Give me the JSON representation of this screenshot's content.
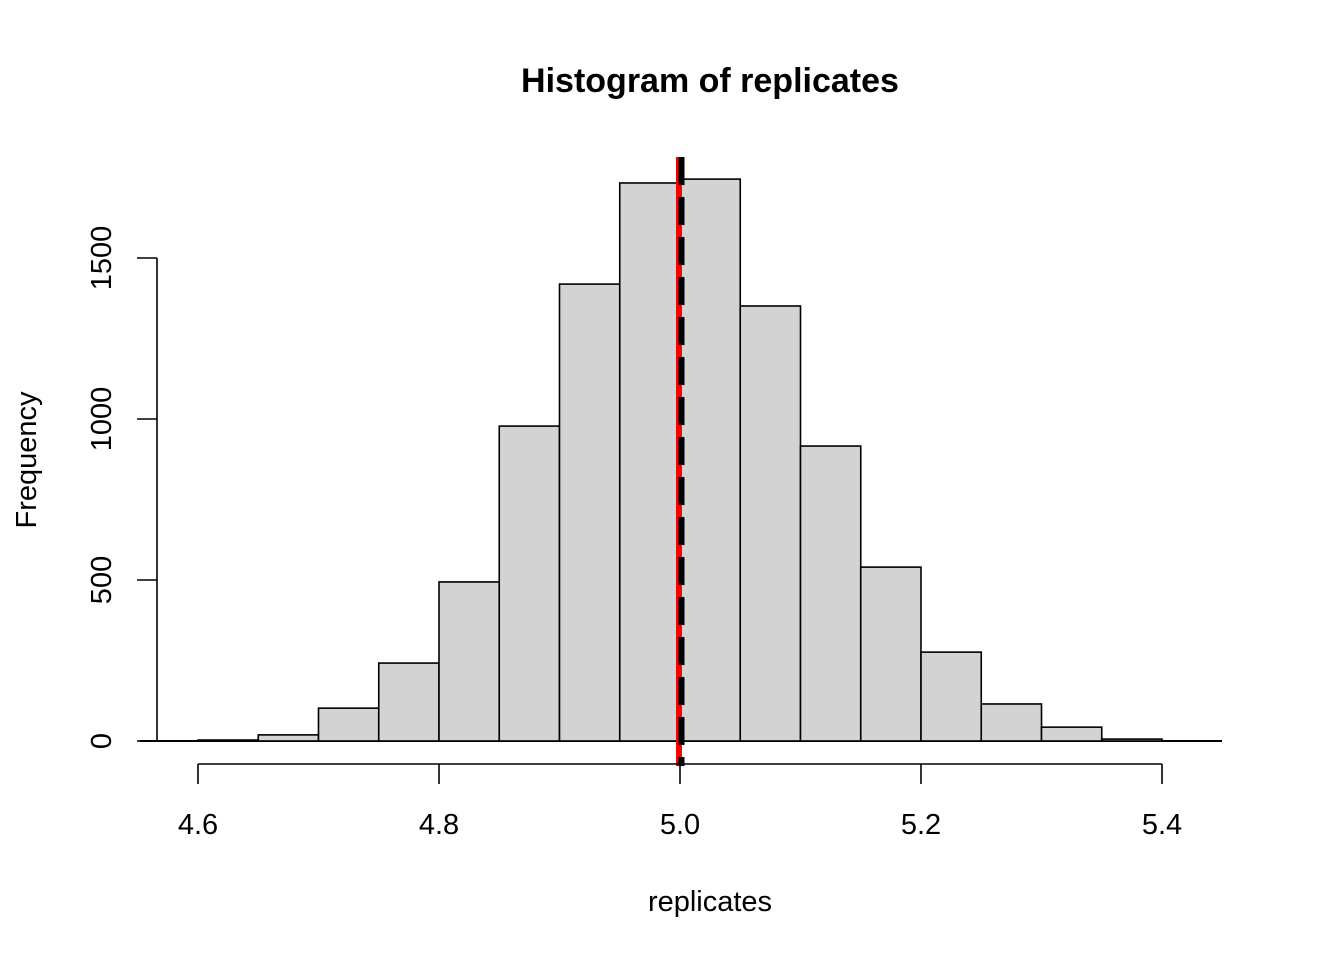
{
  "chart_data": {
    "type": "bar",
    "title": "Histogram of replicates",
    "xlabel": "replicates",
    "ylabel": "Frequency",
    "bin_edges": [
      4.6,
      4.65,
      4.7,
      4.75,
      4.8,
      4.85,
      4.9,
      4.95,
      5.0,
      5.05,
      5.1,
      5.15,
      5.2,
      5.25,
      5.3,
      5.35,
      5.4
    ],
    "values": [
      3,
      19,
      102,
      242,
      494,
      978,
      1419,
      1733,
      1745,
      1351,
      916,
      540,
      276,
      115,
      43,
      6
    ],
    "xlim": [
      4.6,
      5.45
    ],
    "ylim": [
      0,
      1800
    ],
    "x_ticks": [
      4.6,
      4.8,
      5.0,
      5.2,
      5.4
    ],
    "x_tick_labels": [
      "4.6",
      "4.8",
      "5.0",
      "5.2",
      "5.4"
    ],
    "y_ticks": [
      0,
      500,
      1000,
      1500
    ],
    "y_tick_labels": [
      "0",
      "500",
      "1000",
      "1500"
    ],
    "bar_color": "#d3d3d3",
    "vlines": [
      {
        "x": 5.0,
        "color": "#ff0000",
        "style": "solid"
      },
      {
        "x": 5.0,
        "color": "#000000",
        "style": "dashed"
      }
    ],
    "grid": false
  }
}
